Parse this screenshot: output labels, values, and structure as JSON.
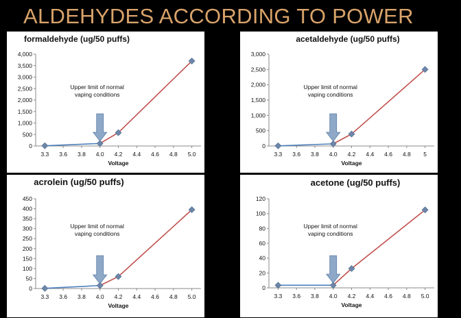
{
  "slide_title": "ALDEHYDES ACCORDING TO POWER",
  "chart_data": [
    {
      "type": "line",
      "title": "formaldehyde (ug/50 puffs)",
      "xlabel": "Voltage",
      "ylabel": "",
      "x_ticks": [
        "3.3",
        "3.6",
        "3.8",
        "4.0",
        "4.2",
        "4.4",
        "4.6",
        "4.8",
        "5.0"
      ],
      "y_ticks": [
        "0",
        "500",
        "1,000",
        "1,500",
        "2,000",
        "2,500",
        "3,000",
        "3,500",
        "4,000"
      ],
      "ylim": [
        0,
        4000
      ],
      "points": [
        {
          "x": "3.3",
          "y": 10
        },
        {
          "x": "4.0",
          "y": 110
        },
        {
          "x": "4.2",
          "y": 580
        },
        {
          "x": "5.0",
          "y": 3700
        }
      ],
      "annotation": [
        "Upper limit of normal",
        "vaping conditions"
      ],
      "annotation_points_to": "4.0",
      "colors": {
        "low_segment": "#4f81bd",
        "high_segment": "#c0504d",
        "marker": "#6d86a8",
        "arrow": "#8ea8c8"
      }
    },
    {
      "type": "line",
      "title": "acetaldehyde  (ug/50 puffs)",
      "xlabel": "Voltage",
      "ylabel": "",
      "x_ticks": [
        "3.3",
        "3.6",
        "3.8",
        "4.0",
        "4.2",
        "4.4",
        "4.6",
        "4.8",
        "5"
      ],
      "y_ticks": [
        "0",
        "500",
        "1,000",
        "1,500",
        "2,000",
        "2,500",
        "3,000"
      ],
      "ylim": [
        0,
        3000
      ],
      "points": [
        {
          "x": "3.3",
          "y": 5
        },
        {
          "x": "4.0",
          "y": 70
        },
        {
          "x": "4.2",
          "y": 390
        },
        {
          "x": "5",
          "y": 2500
        }
      ],
      "annotation": [
        "Upper limit of normal",
        "vaping conditions"
      ],
      "annotation_points_to": "4.0",
      "colors": {
        "low_segment": "#4f81bd",
        "high_segment": "#c0504d",
        "marker": "#6d86a8",
        "arrow": "#8ea8c8"
      }
    },
    {
      "type": "line",
      "title": "acrolein (ug/50 puffs)",
      "xlabel": "Voltage",
      "ylabel": "",
      "x_ticks": [
        "3.3",
        "3.6",
        "3.8",
        "4.0",
        "4.2",
        "4.4",
        "4.6",
        "4.8",
        "5.0"
      ],
      "y_ticks": [
        "0",
        "50",
        "100",
        "150",
        "200",
        "250",
        "300",
        "350",
        "400",
        "450"
      ],
      "ylim": [
        0,
        450
      ],
      "points": [
        {
          "x": "3.3",
          "y": 1
        },
        {
          "x": "4.0",
          "y": 15
        },
        {
          "x": "4.2",
          "y": 60
        },
        {
          "x": "5.0",
          "y": 395
        }
      ],
      "annotation": [
        "Upper limit of normal",
        "vaping conditions"
      ],
      "annotation_points_to": "4.0",
      "colors": {
        "low_segment": "#4f81bd",
        "high_segment": "#c0504d",
        "marker": "#6d86a8",
        "arrow": "#8ea8c8"
      }
    },
    {
      "type": "line",
      "title": "acetone (ug/50 puffs)",
      "xlabel": "Voltage",
      "ylabel": "",
      "x_ticks": [
        "3.3",
        "3.6",
        "3.8",
        "4.0",
        "4.2",
        "4.4",
        "4.6",
        "4.8",
        "5.0"
      ],
      "y_ticks": [
        "0",
        "20",
        "40",
        "60",
        "80",
        "100",
        "120"
      ],
      "ylim": [
        0,
        120
      ],
      "points": [
        {
          "x": "3.3",
          "y": 3.5
        },
        {
          "x": "4.0",
          "y": 3.5
        },
        {
          "x": "4.2",
          "y": 26
        },
        {
          "x": "5.0",
          "y": 105
        }
      ],
      "annotation": [
        "Upper limit of normal",
        "vaping conditions"
      ],
      "annotation_points_to": "4.0",
      "colors": {
        "low_segment": "#4f81bd",
        "high_segment": "#c0504d",
        "marker": "#6d86a8",
        "arrow": "#8ea8c8"
      }
    }
  ]
}
